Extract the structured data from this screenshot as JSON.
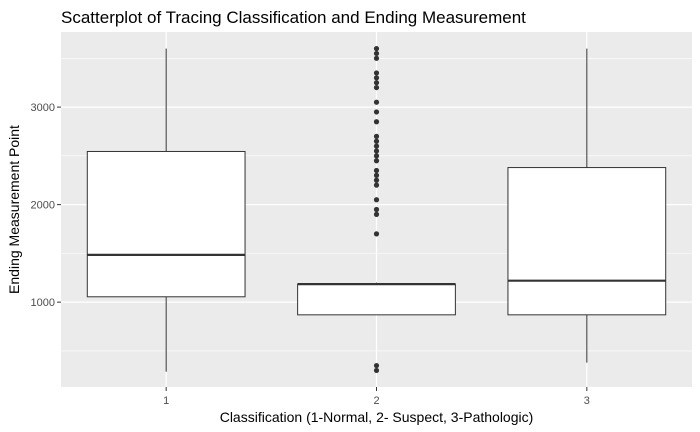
{
  "chart_data": {
    "type": "boxplot",
    "title": "Scatterplot of Tracing Classification and Ending Measurement",
    "xlabel": "Classification (1-Normal, 2- Suspect, 3-Pathologic)",
    "ylabel": "Ending Measurement Point",
    "categories": [
      "1",
      "2",
      "3"
    ],
    "y_ticks": [
      1000,
      2000,
      3000
    ],
    "y_tick_labels": [
      "1000",
      "2000",
      "3000"
    ],
    "ylim": [
      130,
      3770
    ],
    "grid": true,
    "colors": {
      "panel": "#ebebeb",
      "grid_major": "#ffffff",
      "box_fill": "#ffffff",
      "box_line": "#333333",
      "outlier": "#333333"
    },
    "boxes": [
      {
        "category": "1",
        "whisker_low": 287,
        "q1": 1055,
        "median": 1485,
        "q3": 2545,
        "whisker_high": 3600,
        "outliers": []
      },
      {
        "category": "2",
        "whisker_low": 870,
        "q1": 870,
        "median": 1185,
        "q3": 1185,
        "whisker_high": 1200,
        "outliers": [
          300,
          350,
          1700,
          1900,
          1950,
          2050,
          2200,
          2250,
          2300,
          2350,
          2450,
          2500,
          2550,
          2600,
          2650,
          2700,
          2850,
          2950,
          3050,
          3200,
          3250,
          3300,
          3350,
          3500,
          3550,
          3600
        ]
      },
      {
        "category": "3",
        "whisker_low": 380,
        "q1": 870,
        "median": 1220,
        "q3": 2380,
        "whisker_high": 3600,
        "outliers": []
      }
    ]
  }
}
